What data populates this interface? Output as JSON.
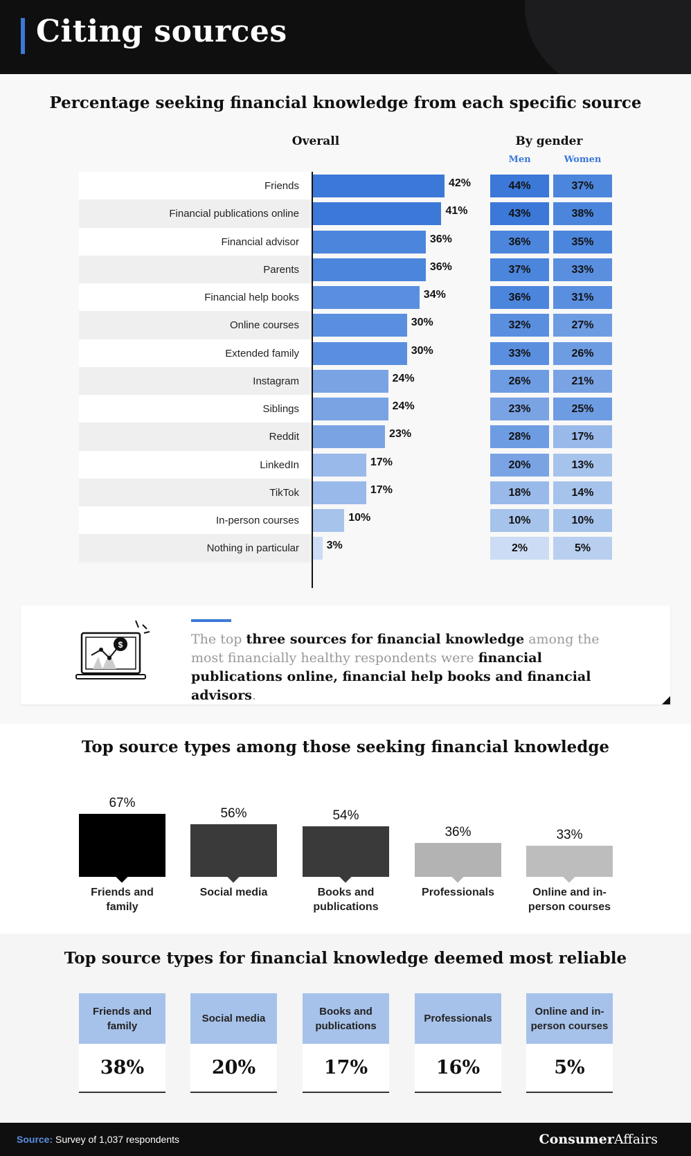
{
  "header": {
    "title": "Citing sources"
  },
  "section1": {
    "title": "Percentage seeking financial knowledge from each specific source",
    "overall_label": "Overall",
    "gender_label": "By gender",
    "men_label": "Men",
    "women_label": "Women"
  },
  "callout": {
    "t1": "The top ",
    "b1": "three sources for financial knowledge",
    "t2": " among the most financially healthy respondents were ",
    "b2": "financial publications online, financial help books and financial advisors",
    "t3": "."
  },
  "section2": {
    "title": "Top source types among those seeking financial knowledge"
  },
  "section3": {
    "title": "Top source types for financial knowledge deemed most reliable"
  },
  "footer": {
    "source_label": "Source:",
    "source_text": " Survey of 1,037 respondents",
    "logo_bold": "Consumer",
    "logo_rest": "Affairs"
  },
  "colors": {
    "accent": "#3b78d8",
    "dark": "#0f0f10",
    "card_blue": "#a7c2ea"
  },
  "chart_data": [
    {
      "type": "bar",
      "orientation": "horizontal",
      "title": "Percentage seeking financial knowledge from each specific source",
      "categories": [
        "Friends",
        "Financial publications online",
        "Financial advisor",
        "Parents",
        "Financial help books",
        "Online courses",
        "Extended family",
        "Instagram",
        "Siblings",
        "Reddit",
        "LinkedIn",
        "TikTok",
        "In-person courses",
        "Nothing in particular"
      ],
      "series": [
        {
          "name": "Overall",
          "values": [
            42,
            41,
            36,
            36,
            34,
            30,
            30,
            24,
            24,
            23,
            17,
            17,
            10,
            3
          ]
        },
        {
          "name": "Men",
          "values": [
            44,
            43,
            36,
            37,
            36,
            32,
            33,
            26,
            23,
            28,
            20,
            18,
            10,
            2
          ]
        },
        {
          "name": "Women",
          "values": [
            37,
            38,
            35,
            33,
            31,
            27,
            26,
            21,
            25,
            17,
            13,
            14,
            10,
            5
          ]
        }
      ],
      "unit": "%"
    },
    {
      "type": "bar",
      "title": "Top source types among those seeking financial knowledge",
      "categories": [
        "Friends and family",
        "Social media",
        "Books and publications",
        "Professionals",
        "Online and in-person courses"
      ],
      "values": [
        67,
        56,
        54,
        36,
        33
      ],
      "unit": "%"
    },
    {
      "type": "table",
      "title": "Top source types for financial knowledge deemed most reliable",
      "categories": [
        "Friends and family",
        "Social media",
        "Books and publications",
        "Professionals",
        "Online and in-person courses"
      ],
      "values": [
        38,
        20,
        17,
        16,
        5
      ],
      "unit": "%"
    }
  ]
}
